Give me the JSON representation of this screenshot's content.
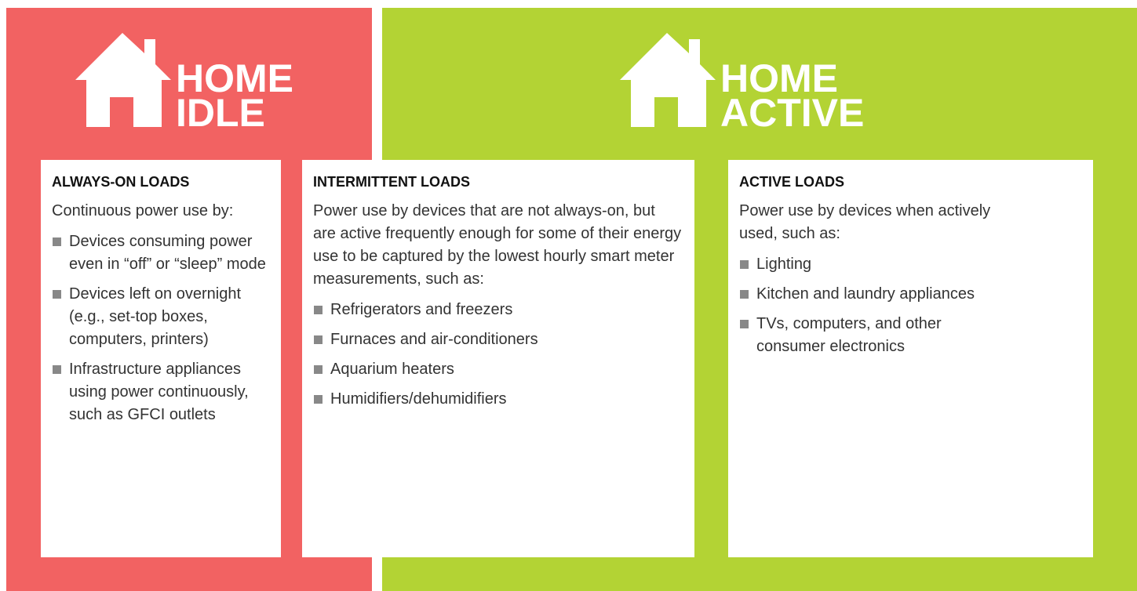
{
  "panels": [
    {
      "title_line1": "HOME",
      "title_line2": "IDLE"
    },
    {
      "title_line1": "HOME",
      "title_line2": "ACTIVE"
    }
  ],
  "boxes": [
    {
      "heading": "ALWAYS-ON LOADS",
      "text": "Continuous power use by:",
      "items": [
        "Devices consuming power even in “off” or “sleep” mode",
        "Devices left on overnight (e.g., set-top boxes, computers, printers)",
        "Infrastructure appliances using power continuously, such as GFCI outlets"
      ]
    },
    {
      "heading": "INTERMITTENT LOADS",
      "text": "Power use by devices that are not always-on, but are active frequently enough for some of their energy use to be captured by the lowest hourly smart meter measurements, such as:",
      "items": [
        "Refrigerators and freezers",
        "Furnaces and air-conditioners",
        "Aquarium heaters",
        "Humidifiers/dehumidifiers"
      ]
    },
    {
      "heading": "ACTIVE LOADS",
      "text": "Power use by devices when actively used, such as:",
      "items": [
        "Lighting",
        "Kitchen and laundry appliances",
        "TVs, computers, and other consumer electronics"
      ]
    }
  ]
}
